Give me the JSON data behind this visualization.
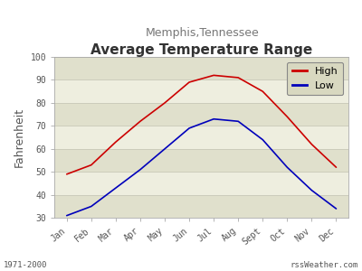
{
  "title": "Average Temperature Range",
  "subtitle": "Memphis,Tennessee",
  "ylabel": "Fahrenheit",
  "months": [
    "Jan",
    "Feb",
    "Mar",
    "Apr",
    "May",
    "Jun",
    "Jul",
    "Aug",
    "Sept",
    "Oct",
    "Nov",
    "Dec"
  ],
  "high_temps": [
    49,
    53,
    63,
    72,
    80,
    89,
    92,
    91,
    85,
    74,
    62,
    52
  ],
  "low_temps": [
    31,
    35,
    43,
    51,
    60,
    69,
    73,
    72,
    64,
    52,
    42,
    34
  ],
  "high_color": "#cc0000",
  "low_color": "#0000bb",
  "ylim": [
    30,
    100
  ],
  "yticks": [
    30,
    40,
    50,
    60,
    70,
    80,
    90,
    100
  ],
  "bg_color": "#ffffff",
  "plot_bg_light": "#eeeedf",
  "plot_bg_dark": "#e0e0cc",
  "title_fontsize": 11,
  "subtitle_fontsize": 9,
  "ylabel_fontsize": 9,
  "tick_fontsize": 7,
  "legend_bg": "#d8d8c0",
  "footer_left": "1971-2000",
  "footer_right": "rssWeather.com"
}
